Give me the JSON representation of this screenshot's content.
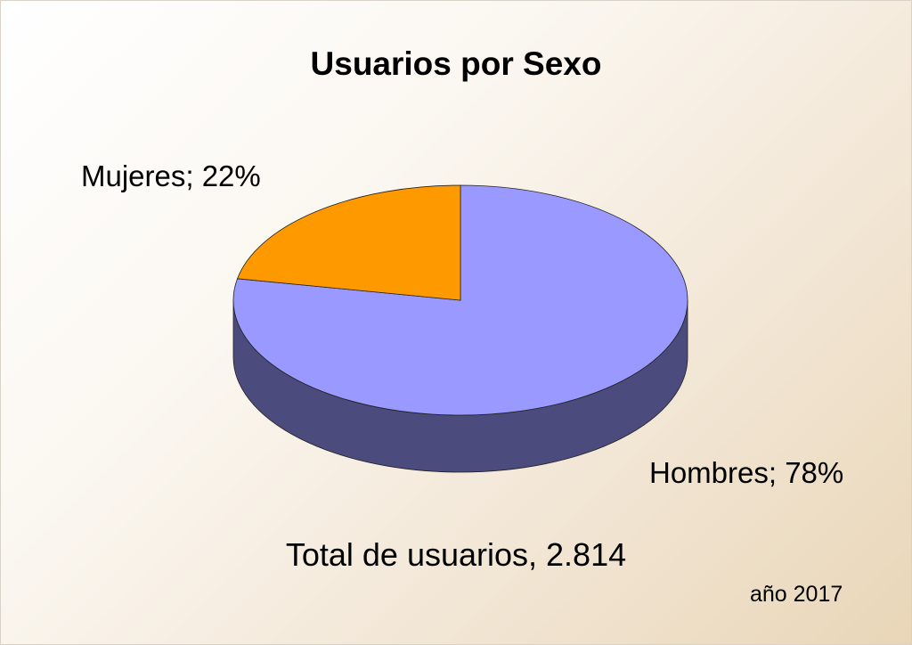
{
  "chart_data": {
    "type": "pie",
    "title": "Usuarios por Sexo",
    "slices": [
      {
        "name": "Hombres",
        "value": 78,
        "label": "Hombres; 78%",
        "color": "#9999ff",
        "side_color": "#4b4b7d"
      },
      {
        "name": "Mujeres",
        "value": 22,
        "label": "Mujeres; 22%",
        "color": "#ff9900",
        "side_color": "#7f4c00"
      }
    ],
    "style": "3d",
    "annotations": {
      "total": "Total de usuarios, 2.814",
      "year": "año 2017"
    }
  }
}
